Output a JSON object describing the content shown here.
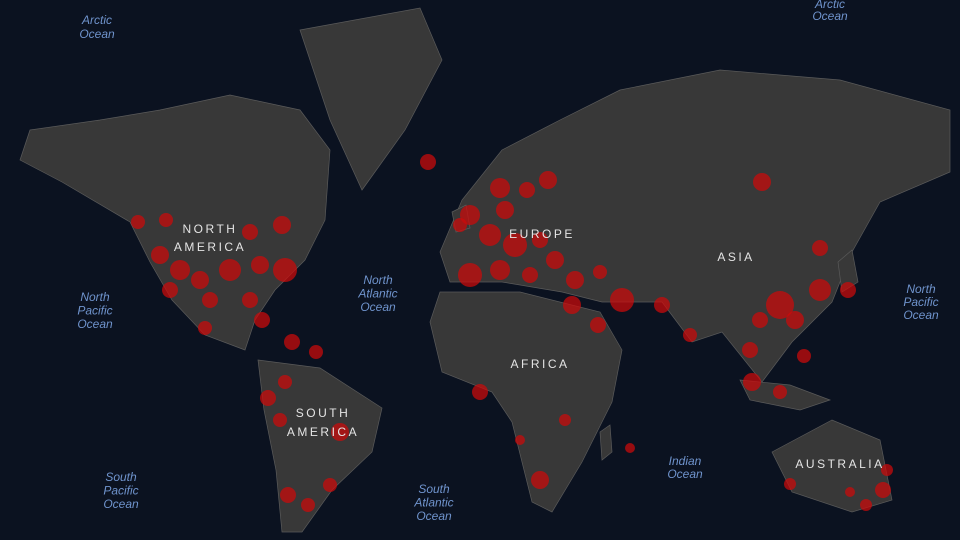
{
  "ocean_labels": [
    [
      "Arctic",
      "Ocean"
    ],
    [
      "Arctic",
      "Ocean"
    ],
    [
      "North",
      "Pacific",
      "Ocean"
    ],
    [
      "North",
      "Atlantic",
      "Ocean"
    ],
    [
      "North",
      "Pacific",
      "Ocean"
    ],
    [
      "South",
      "Pacific",
      "Ocean"
    ],
    [
      "South",
      "Atlantic",
      "Ocean"
    ],
    [
      "Indian",
      "Ocean"
    ]
  ],
  "continent_labels": [
    [
      "NORTH",
      "AMERICA"
    ],
    [
      "EUROPE"
    ],
    [
      "ASIA"
    ],
    [
      "AFRICA"
    ],
    [
      "SOUTH",
      "AMERICA"
    ],
    [
      "AUSTRALIA"
    ]
  ]
}
